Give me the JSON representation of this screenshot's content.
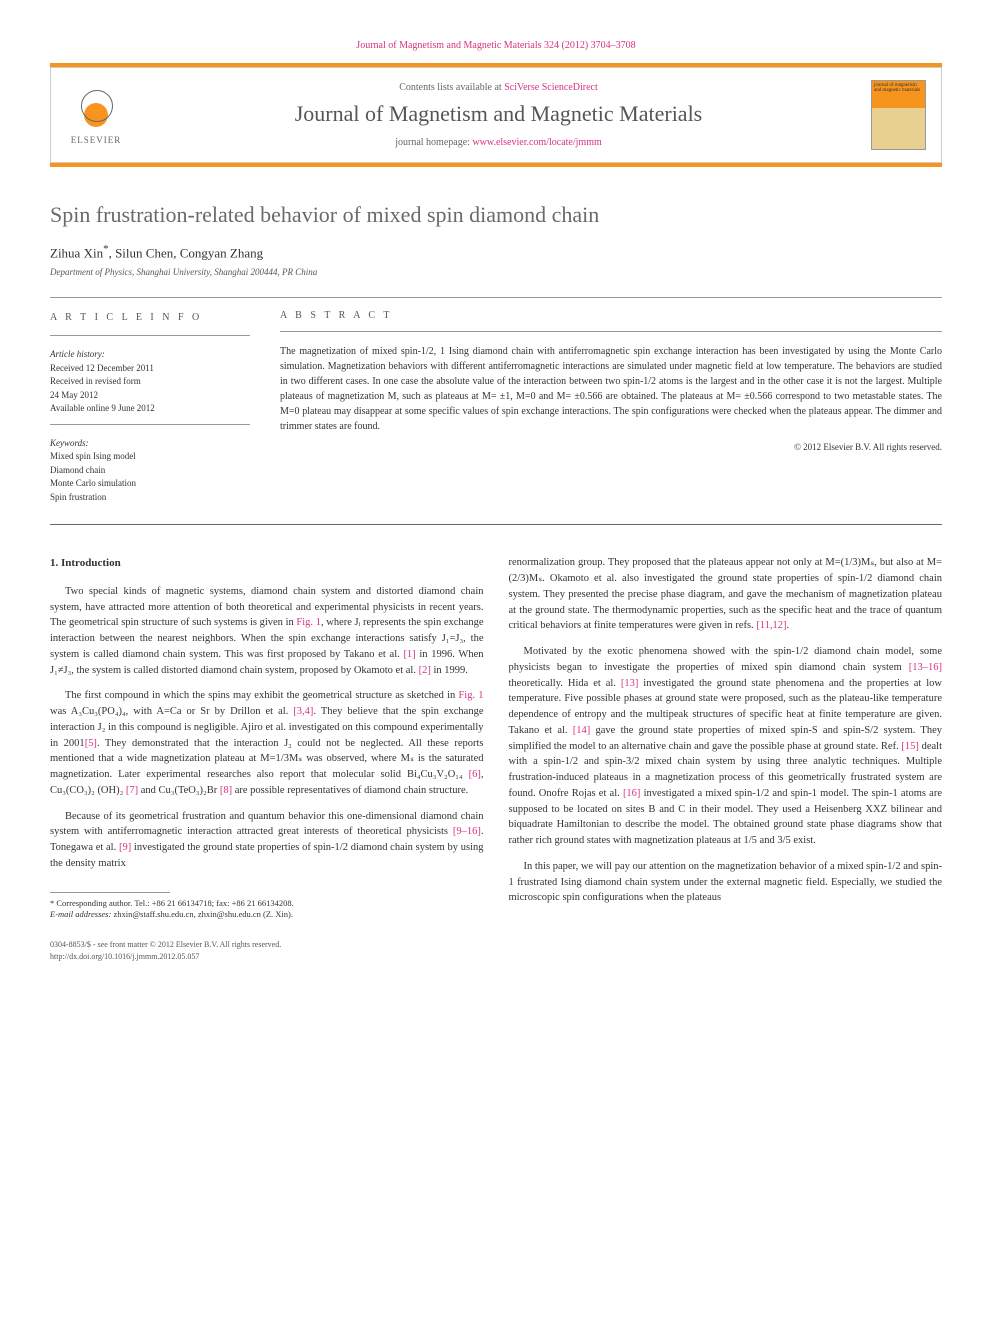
{
  "header": {
    "top_citation": "Journal of Magnetism and Magnetic Materials 324 (2012) 3704–3708",
    "contents_prefix": "Contents lists available at ",
    "contents_link": "SciVerse ScienceDirect",
    "journal_name": "Journal of Magnetism and Magnetic Materials",
    "homepage_prefix": "journal homepage: ",
    "homepage_link": "www.elsevier.com/locate/jmmm",
    "elsevier": "ELSEVIER",
    "cover_text": "journal of magnetism and magnetic materials"
  },
  "article": {
    "title": "Spin frustration-related behavior of mixed spin diamond chain",
    "authors": "Zihua Xin",
    "author_mark": "*",
    "authors_rest": ", Silun Chen, Congyan Zhang",
    "affiliation": "Department of Physics, Shanghai University, Shanghai 200444, PR China"
  },
  "info": {
    "heading": "A R T I C L E   I N F O",
    "history_label": "Article history:",
    "received": "Received 12 December 2011",
    "revised1": "Received in revised form",
    "revised2": "24 May 2012",
    "online": "Available online 9 June 2012",
    "keywords_label": "Keywords:",
    "kw1": "Mixed spin Ising model",
    "kw2": "Diamond chain",
    "kw3": "Monte Carlo simulation",
    "kw4": "Spin frustration"
  },
  "abstract": {
    "heading": "A B S T R A C T",
    "text": "The magnetization of mixed spin-1/2, 1 Ising diamond chain with antiferromagnetic spin exchange interaction has been investigated by using the Monte Carlo simulation. Magnetization behaviors with different antiferromagnetic interactions are simulated under magnetic field at low temperature. The behaviors are studied in two different cases. In one case the absolute value of the interaction between two spin-1/2 atoms is the largest and in the other case it is not the largest. Multiple plateaus of magnetization M, such as plateaus at M= ±1, M=0 and M= ±0.566 are obtained. The plateaus at M= ±0.566 correspond to two metastable states. The M=0 plateau may disappear at some specific values of spin exchange interactions. The spin configurations were checked when the plateaus appear. The dimmer and trimmer states are found.",
    "copyright": "© 2012 Elsevier B.V. All rights reserved."
  },
  "body": {
    "section_heading": "1. Introduction",
    "p1_a": "Two special kinds of magnetic systems, diamond chain system and distorted diamond chain system, have attracted more attention of both theoretical and experimental physicists in recent years. The geometrical spin structure of such systems is given in ",
    "p1_fig": "Fig. 1",
    "p1_b": ", where Jᵢ represents the spin exchange interaction between the nearest neighbors. When the spin exchange interactions satisfy J₁=J₃, the system is called diamond chain system. This was first proposed by Takano et al. ",
    "p1_ref1": "[1]",
    "p1_c": " in 1996. When J₁≠J₃, the system is called distorted diamond chain system, proposed by Okamoto et al. ",
    "p1_ref2": "[2]",
    "p1_d": " in 1999.",
    "p2_a": "The first compound in which the spins may exhibit the geometrical structure as sketched in ",
    "p2_fig": "Fig. 1",
    "p2_b": " was A₃Cu₃(PO₄)₄, with A=Ca or Sr by Drillon et al. ",
    "p2_ref1": "[3,4]",
    "p2_c": ". They believe that the spin exchange interaction J₂ in this compound is negligible. Ajiro et al. investigated on this compound experimentally in 2001",
    "p2_ref2": "[5]",
    "p2_d": ". They demonstrated that the interaction J₂ could not be neglected. All these reports mentioned that a wide magnetization plateau at M=1/3Mₛ was observed, where Mₛ is the saturated magnetization. Later experimental researches also report that molecular solid Bi₄Cu₃V₂O₁₄ ",
    "p2_ref3": "[6]",
    "p2_e": ", Cu₃(CO₃)₂ (OH)₂ ",
    "p2_ref4": "[7]",
    "p2_f": " and Cu₃(TeO₃)₂Br ",
    "p2_ref5": "[8]",
    "p2_g": " are possible representatives of diamond chain structure.",
    "p3_a": "Because of its geometrical frustration and quantum behavior this one-dimensional diamond chain system with antiferromagnetic interaction attracted great interests of theoretical physicists ",
    "p3_ref1": "[9–16]",
    "p3_b": ". Tonegawa et al. ",
    "p3_ref2": "[9]",
    "p3_c": " investigated the ground state properties of spin-1/2 diamond chain system by using the density matrix",
    "p4_a": "renormalization group. They proposed that the plateaus appear not only at M=(1/3)Mₛ, but also at M=(2/3)Mₛ. Okamoto et al. also investigated the ground state properties of spin-1/2 diamond chain system. They presented the precise phase diagram, and gave the mechanism of magnetization plateau at the ground state. The thermodynamic properties, such as the specific heat and the trace of quantum critical behaviors at finite temperatures were given in refs. ",
    "p4_ref1": "[11,12]",
    "p4_b": ".",
    "p5_a": "Motivated by the exotic phenomena showed with the spin-1/2 diamond chain model, some physicists began to investigate the properties of mixed spin diamond chain system ",
    "p5_ref1": "[13–16]",
    "p5_b": " theoretically. Hida et al. ",
    "p5_ref2": "[13]",
    "p5_c": " investigated the ground state phenomena and the properties at low temperature. Five possible phases at ground state were proposed, such as the plateau-like temperature dependence of entropy and the multipeak structures of specific heat at finite temperature are given. Takano et al. ",
    "p5_ref3": "[14]",
    "p5_d": " gave the ground state properties of mixed spin-S and spin-S/2 system. They simplified the model to an alternative chain and gave the possible phase at ground state. Ref. ",
    "p5_ref4": "[15]",
    "p5_e": " dealt with a spin-1/2 and spin-3/2 mixed chain system by using three analytic techniques. Multiple frustration-induced plateaus in a magnetization process of this geometrically frustrated system are found. Onofre Rojas et al. ",
    "p5_ref5": "[16]",
    "p5_f": " investigated a mixed spin-1/2 and spin-1 model. The spin-1 atoms are supposed to be located on sites B and C in their model. They used a Heisenberg XXZ bilinear and biquadrate Hamiltonian to describe the model. The obtained ground state phase diagrams show that rather rich ground states with magnetization plateaus at 1/5 and 3/5 exist.",
    "p6": "In this paper, we will pay our attention on the magnetization behavior of a mixed spin-1/2 and spin-1 frustrated Ising diamond chain system under the external magnetic field. Especially, we studied the microscopic spin configurations when the plateaus"
  },
  "footnote": {
    "corr_label": "* Corresponding author. Tel.: +86 21 66134718; fax: +86 21 66134208.",
    "email_label": "E-mail addresses:",
    "emails": " zhxin@staff.shu.edu.cn, zhxin@shu.edu.cn (Z. Xin)."
  },
  "footer": {
    "line1": "0304-8853/$ - see front matter © 2012 Elsevier B.V. All rights reserved.",
    "line2": "http://dx.doi.org/10.1016/j.jmmm.2012.05.057"
  }
}
